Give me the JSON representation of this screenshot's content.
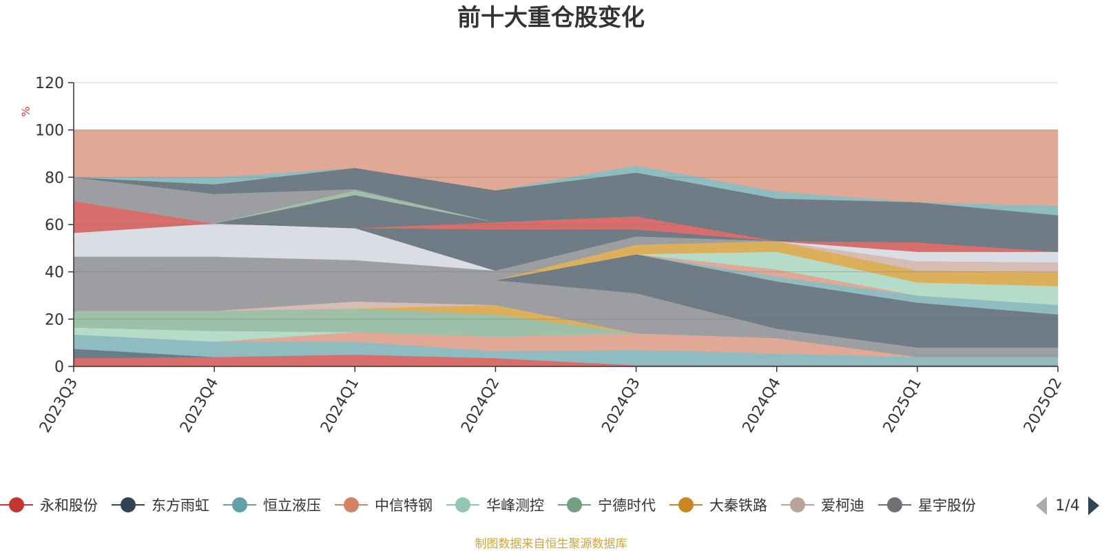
{
  "chart_data": {
    "type": "area",
    "title": "前十大重仓股变化",
    "ylabel": "%",
    "ylim": [
      0,
      120
    ],
    "yticks": [
      0,
      20,
      40,
      60,
      80,
      100,
      120
    ],
    "categories": [
      "2023Q3",
      "2023Q4",
      "2024Q1",
      "2024Q2",
      "2024Q3",
      "2024Q4",
      "2025Q1",
      "2025Q2"
    ],
    "bands": [
      {
        "color": "#d86e6c",
        "lower": [
          0,
          0,
          0,
          0,
          0,
          0,
          0,
          0
        ],
        "upper": [
          3.5,
          4,
          5,
          3.5,
          0.5,
          0.5,
          0.5,
          0.5
        ]
      },
      {
        "color": "#6b7c88",
        "lower": [
          3.5,
          4,
          5,
          3.5,
          0.5,
          0.5,
          0.5,
          0.5
        ],
        "upper": [
          7.5,
          4,
          5,
          3.5,
          0.5,
          0.5,
          0.5,
          0.5
        ]
      },
      {
        "color": "#8fbcc1",
        "lower": [
          7.5,
          4,
          5,
          3.5,
          0.5,
          0.5,
          0.5,
          0.5
        ],
        "upper": [
          13.5,
          10.5,
          10.5,
          6.5,
          7,
          5.5,
          4,
          4
        ]
      },
      {
        "color": "#e0a895",
        "lower": [
          13.5,
          10.5,
          10.5,
          6.5,
          7,
          5.5,
          4,
          4
        ],
        "upper": [
          13.5,
          10.5,
          14.5,
          12.5,
          14,
          12,
          4,
          4
        ]
      },
      {
        "color": "#b4dcc8",
        "lower": [
          13.5,
          10.5,
          14.5,
          12.5,
          14,
          12,
          4,
          4
        ],
        "upper": [
          16.5,
          15,
          14.5,
          12.5,
          14,
          12,
          4,
          4
        ]
      },
      {
        "color": "#9ebfa8",
        "lower": [
          16.5,
          15,
          14.5,
          12.5,
          14,
          12,
          4,
          4
        ],
        "upper": [
          23.5,
          23.5,
          24.5,
          22,
          14,
          12,
          4,
          4
        ]
      },
      {
        "color": "#dcaf5a",
        "lower": [
          23.5,
          23.5,
          24.5,
          22,
          14,
          12,
          4,
          4
        ],
        "upper": [
          23.5,
          23.5,
          24.5,
          26,
          14,
          12,
          4,
          4
        ]
      },
      {
        "color": "#d7bcb4",
        "lower": [
          23.5,
          23.5,
          24.5,
          26,
          14,
          12,
          4,
          4
        ],
        "upper": [
          23.5,
          23.5,
          27.5,
          26,
          14,
          12,
          4,
          4
        ]
      },
      {
        "color": "#9c9ea2",
        "lower": [
          23.5,
          23.5,
          27.5,
          26,
          14,
          12,
          4,
          4
        ],
        "upper": [
          43,
          42.5,
          45,
          36.5,
          31,
          16,
          8,
          8
        ]
      },
      {
        "color": "#6f7b85",
        "lower": [
          43,
          42.5,
          45,
          36.5,
          31,
          16,
          8,
          8
        ],
        "upper": [
          43,
          42.5,
          45,
          36.5,
          47.5,
          36,
          27,
          22
        ]
      },
      {
        "color": "#8fbcc1",
        "lower": [
          43,
          42.5,
          45,
          36.5,
          47.5,
          36,
          27,
          22
        ],
        "upper": [
          43,
          42.5,
          45,
          36.5,
          47.5,
          38,
          30,
          26
        ]
      },
      {
        "color": "#e0a895",
        "lower": [
          43,
          42.5,
          45,
          36.5,
          47.5,
          38,
          30,
          26
        ],
        "upper": [
          43,
          42.5,
          45,
          36.5,
          47.5,
          41,
          30,
          26
        ]
      },
      {
        "color": "#b4dcc8",
        "lower": [
          43,
          42.5,
          45,
          36.5,
          47.5,
          41,
          30,
          26
        ],
        "upper": [
          43,
          42.5,
          45,
          36.5,
          47.5,
          48.5,
          35.5,
          34
        ]
      },
      {
        "color": "#dcaf5a",
        "lower": [
          43,
          42.5,
          45,
          36.5,
          47.5,
          48.5,
          35.5,
          34
        ],
        "upper": [
          43,
          42.5,
          45,
          36.5,
          51.5,
          53,
          40.5,
          40
        ]
      },
      {
        "color": "#d7bcb4",
        "lower": [
          43,
          42.5,
          45,
          36.5,
          51.5,
          53,
          40.5,
          40
        ],
        "upper": [
          43,
          42.5,
          45,
          36.5,
          51.5,
          53,
          44.5,
          44
        ]
      },
      {
        "color": "#9c9ea2",
        "lower": [
          43,
          42.5,
          45,
          36.5,
          51.5,
          53,
          44.5,
          44
        ],
        "upper": [
          46.5,
          46.5,
          45,
          40.5,
          55,
          53,
          44.5,
          44
        ]
      },
      {
        "color": "#dadde3",
        "lower": [
          46.5,
          46.5,
          45,
          40.5,
          55,
          53,
          44.5,
          44
        ],
        "upper": [
          56.5,
          60.5,
          58.5,
          40.5,
          55,
          53,
          48.5,
          48.5
        ]
      },
      {
        "color": "#6f7b85",
        "lower": [
          56.5,
          60.5,
          58.5,
          40.5,
          55,
          53,
          48.5,
          48.5
        ],
        "upper": [
          56.5,
          60.5,
          58.5,
          58,
          58,
          53,
          48.5,
          48.5
        ]
      },
      {
        "color": "#d86e6c",
        "lower": [
          56.5,
          60.5,
          58.5,
          58,
          58,
          53,
          48.5,
          48.5
        ],
        "upper": [
          70,
          60.5,
          58.5,
          61,
          63.5,
          53,
          52.5,
          48.5
        ]
      },
      {
        "color": "#6f7b85",
        "lower": [
          70,
          60.5,
          58.5,
          61,
          63.5,
          53,
          52.5,
          48.5
        ],
        "upper": [
          70,
          60.5,
          72.5,
          61,
          63.5,
          71,
          69.5,
          64
        ]
      },
      {
        "color": "#9ebfa8",
        "lower": [
          70,
          60.5,
          72.5,
          61,
          63.5,
          71,
          69.5,
          64
        ],
        "upper": [
          70,
          60.5,
          74.5,
          61,
          63.5,
          71,
          69.5,
          64
        ]
      },
      {
        "color": "#dcaf5a",
        "lower": [
          70,
          60.5,
          74.5,
          61,
          63.5,
          71,
          69.5,
          64
        ],
        "upper": [
          70,
          60.5,
          74.5,
          61,
          63.5,
          71,
          69.5,
          64
        ]
      },
      {
        "color": "#9c9ea2",
        "lower": [
          70,
          60.5,
          74.5,
          61,
          63.5,
          71,
          69.5,
          64
        ],
        "upper": [
          80,
          73,
          75,
          61,
          63.5,
          71,
          69.5,
          64
        ]
      },
      {
        "color": "#6f7b85",
        "lower": [
          80,
          73,
          75,
          61,
          63.5,
          71,
          69.5,
          64
        ],
        "upper": [
          80,
          77,
          84,
          74.5,
          82,
          71,
          69.5,
          64
        ]
      },
      {
        "color": "#8fbcc1",
        "lower": [
          80,
          77,
          84,
          74.5,
          82,
          71,
          69.5,
          64
        ],
        "upper": [
          80,
          80,
          84,
          74.5,
          85,
          74,
          69.5,
          68
        ]
      },
      {
        "color": "#e0a895",
        "lower": [
          80,
          80,
          84,
          74.5,
          85,
          74,
          69.5,
          68
        ],
        "upper": [
          100,
          100,
          100,
          100,
          100,
          100,
          100,
          100
        ]
      }
    ],
    "legend": {
      "placement": "bottom",
      "items": [
        {
          "name": "永和股份",
          "color": "#c23531"
        },
        {
          "name": "东方雨虹",
          "color": "#2f4554"
        },
        {
          "name": "恒立液压",
          "color": "#61a0a8"
        },
        {
          "name": "中信特钢",
          "color": "#d48265"
        },
        {
          "name": "华峰测控",
          "color": "#91c7ae"
        },
        {
          "name": "宁德时代",
          "color": "#749f83"
        },
        {
          "name": "大秦铁路",
          "color": "#ca8622"
        },
        {
          "name": "爱柯迪",
          "color": "#bda29a"
        },
        {
          "name": "星宇股份",
          "color": "#6e7074"
        }
      ],
      "page": "1/4"
    },
    "grid": true
  },
  "footer": "制图数据来自恒生聚源数据库"
}
